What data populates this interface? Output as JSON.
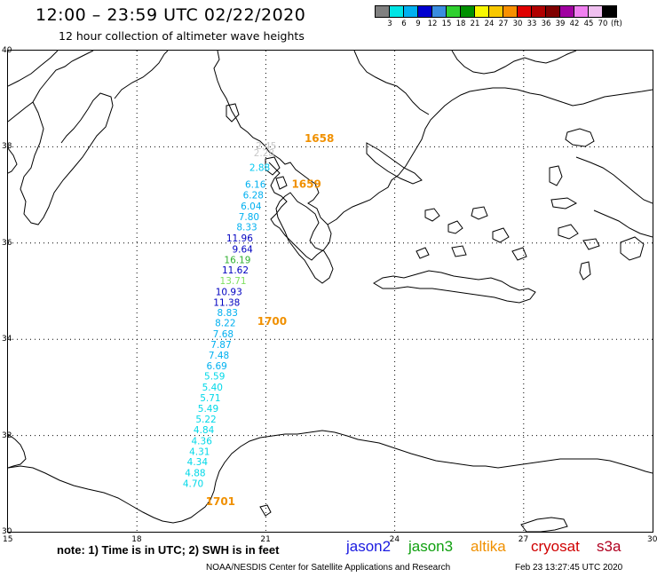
{
  "header": {
    "title": "12:00 – 23:59 UTC 02/22/2020",
    "subtitle": "12 hour collection of altimeter wave heights"
  },
  "colorbar": {
    "colors": [
      "#808080",
      "#00e5e5",
      "#00b0f0",
      "#0000d0",
      "#3a8de0",
      "#30d030",
      "#009000",
      "#f8f800",
      "#f8c800",
      "#f89000",
      "#e00000",
      "#b00000",
      "#800000",
      "#a000a0",
      "#f080f0",
      "#f0c0f0",
      "#000000"
    ],
    "labels": [
      "3",
      "6",
      "9",
      "12",
      "15",
      "18",
      "21",
      "24",
      "27",
      "30",
      "33",
      "36",
      "39",
      "42",
      "45",
      "70"
    ],
    "unit": "(ft)"
  },
  "axes": {
    "lat_labels": [
      "40",
      "38",
      "36",
      "34",
      "32",
      "30"
    ],
    "lon_labels": [
      "15",
      "18",
      "21",
      "24",
      "27",
      "30"
    ]
  },
  "track": {
    "times": [
      {
        "label": "1658",
        "lon": 21.9,
        "lat": 38.1
      },
      {
        "label": "1659",
        "lon": 21.6,
        "lat": 37.15
      },
      {
        "label": "1700",
        "lon": 20.8,
        "lat": 34.3
      },
      {
        "label": "1701",
        "lon": 19.6,
        "lat": 30.55
      }
    ],
    "points": [
      {
        "v": "2.45",
        "lon": 21.25,
        "lat": 37.95,
        "c": "#c8c8c8"
      },
      {
        "v": "2.28",
        "lon": 21.2,
        "lat": 37.8,
        "c": "#c8c8c8"
      },
      {
        "v": "2.88",
        "lon": 21.1,
        "lat": 37.5,
        "c": "#00c8f0"
      },
      {
        "v": "6.16",
        "lon": 21.0,
        "lat": 37.15,
        "c": "#00b0f0"
      },
      {
        "v": "6.28",
        "lon": 20.95,
        "lat": 36.93,
        "c": "#00b0f0"
      },
      {
        "v": "6.04",
        "lon": 20.9,
        "lat": 36.7,
        "c": "#00b0f0"
      },
      {
        "v": "7.80",
        "lon": 20.85,
        "lat": 36.48,
        "c": "#00b0f0"
      },
      {
        "v": "8.33",
        "lon": 20.8,
        "lat": 36.26,
        "c": "#00b0f0"
      },
      {
        "v": "11.96",
        "lon": 20.7,
        "lat": 36.03,
        "c": "#0000c0"
      },
      {
        "v": "9.64",
        "lon": 20.7,
        "lat": 35.8,
        "c": "#0000c0"
      },
      {
        "v": "16.19",
        "lon": 20.65,
        "lat": 35.58,
        "c": "#30b030"
      },
      {
        "v": "11.62",
        "lon": 20.6,
        "lat": 35.37,
        "c": "#0000c0"
      },
      {
        "v": "13.71",
        "lon": 20.55,
        "lat": 35.15,
        "c": "#80e060"
      },
      {
        "v": "10.93",
        "lon": 20.45,
        "lat": 34.92,
        "c": "#0000c0"
      },
      {
        "v": "11.38",
        "lon": 20.4,
        "lat": 34.7,
        "c": "#0000c0"
      },
      {
        "v": "8.83",
        "lon": 20.35,
        "lat": 34.48,
        "c": "#00b0f0"
      },
      {
        "v": "8.22",
        "lon": 20.3,
        "lat": 34.27,
        "c": "#00b0f0"
      },
      {
        "v": "7.68",
        "lon": 20.25,
        "lat": 34.04,
        "c": "#00b0f0"
      },
      {
        "v": "7.87",
        "lon": 20.2,
        "lat": 33.82,
        "c": "#00b0f0"
      },
      {
        "v": "7.48",
        "lon": 20.15,
        "lat": 33.6,
        "c": "#00b0f0"
      },
      {
        "v": "6.69",
        "lon": 20.1,
        "lat": 33.38,
        "c": "#00b0f0"
      },
      {
        "v": "5.59",
        "lon": 20.05,
        "lat": 33.16,
        "c": "#00d8e8"
      },
      {
        "v": "5.40",
        "lon": 20.0,
        "lat": 32.93,
        "c": "#00d8e8"
      },
      {
        "v": "5.71",
        "lon": 19.95,
        "lat": 32.71,
        "c": "#00d8e8"
      },
      {
        "v": "5.49",
        "lon": 19.9,
        "lat": 32.49,
        "c": "#00d8e8"
      },
      {
        "v": "5.22",
        "lon": 19.85,
        "lat": 32.27,
        "c": "#00d8e8"
      },
      {
        "v": "4.84",
        "lon": 19.8,
        "lat": 32.05,
        "c": "#00d8e8"
      },
      {
        "v": "4.36",
        "lon": 19.75,
        "lat": 31.82,
        "c": "#00d8e8"
      },
      {
        "v": "4.31",
        "lon": 19.7,
        "lat": 31.6,
        "c": "#00d8e8"
      },
      {
        "v": "4.34",
        "lon": 19.65,
        "lat": 31.38,
        "c": "#00d8e8"
      },
      {
        "v": "4.88",
        "lon": 19.6,
        "lat": 31.15,
        "c": "#00d8e8"
      },
      {
        "v": "4.70",
        "lon": 19.55,
        "lat": 30.93,
        "c": "#00d8e8"
      }
    ]
  },
  "footer": {
    "note": "note:  1) Time is in UTC;  2) SWH is in feet",
    "satellites": [
      {
        "name": "jason2",
        "color": "#1a1ae0"
      },
      {
        "name": "jason3",
        "color": "#10a010"
      },
      {
        "name": "altika",
        "color": "#f09000"
      },
      {
        "name": "cryosat",
        "color": "#d00000"
      },
      {
        "name": "s3a",
        "color": "#b00020"
      }
    ],
    "credit": "NOAA/NESDIS Center for Satellite Applications and Research",
    "timestamp": "Feb 23 13:27:45 UTC 2020"
  }
}
